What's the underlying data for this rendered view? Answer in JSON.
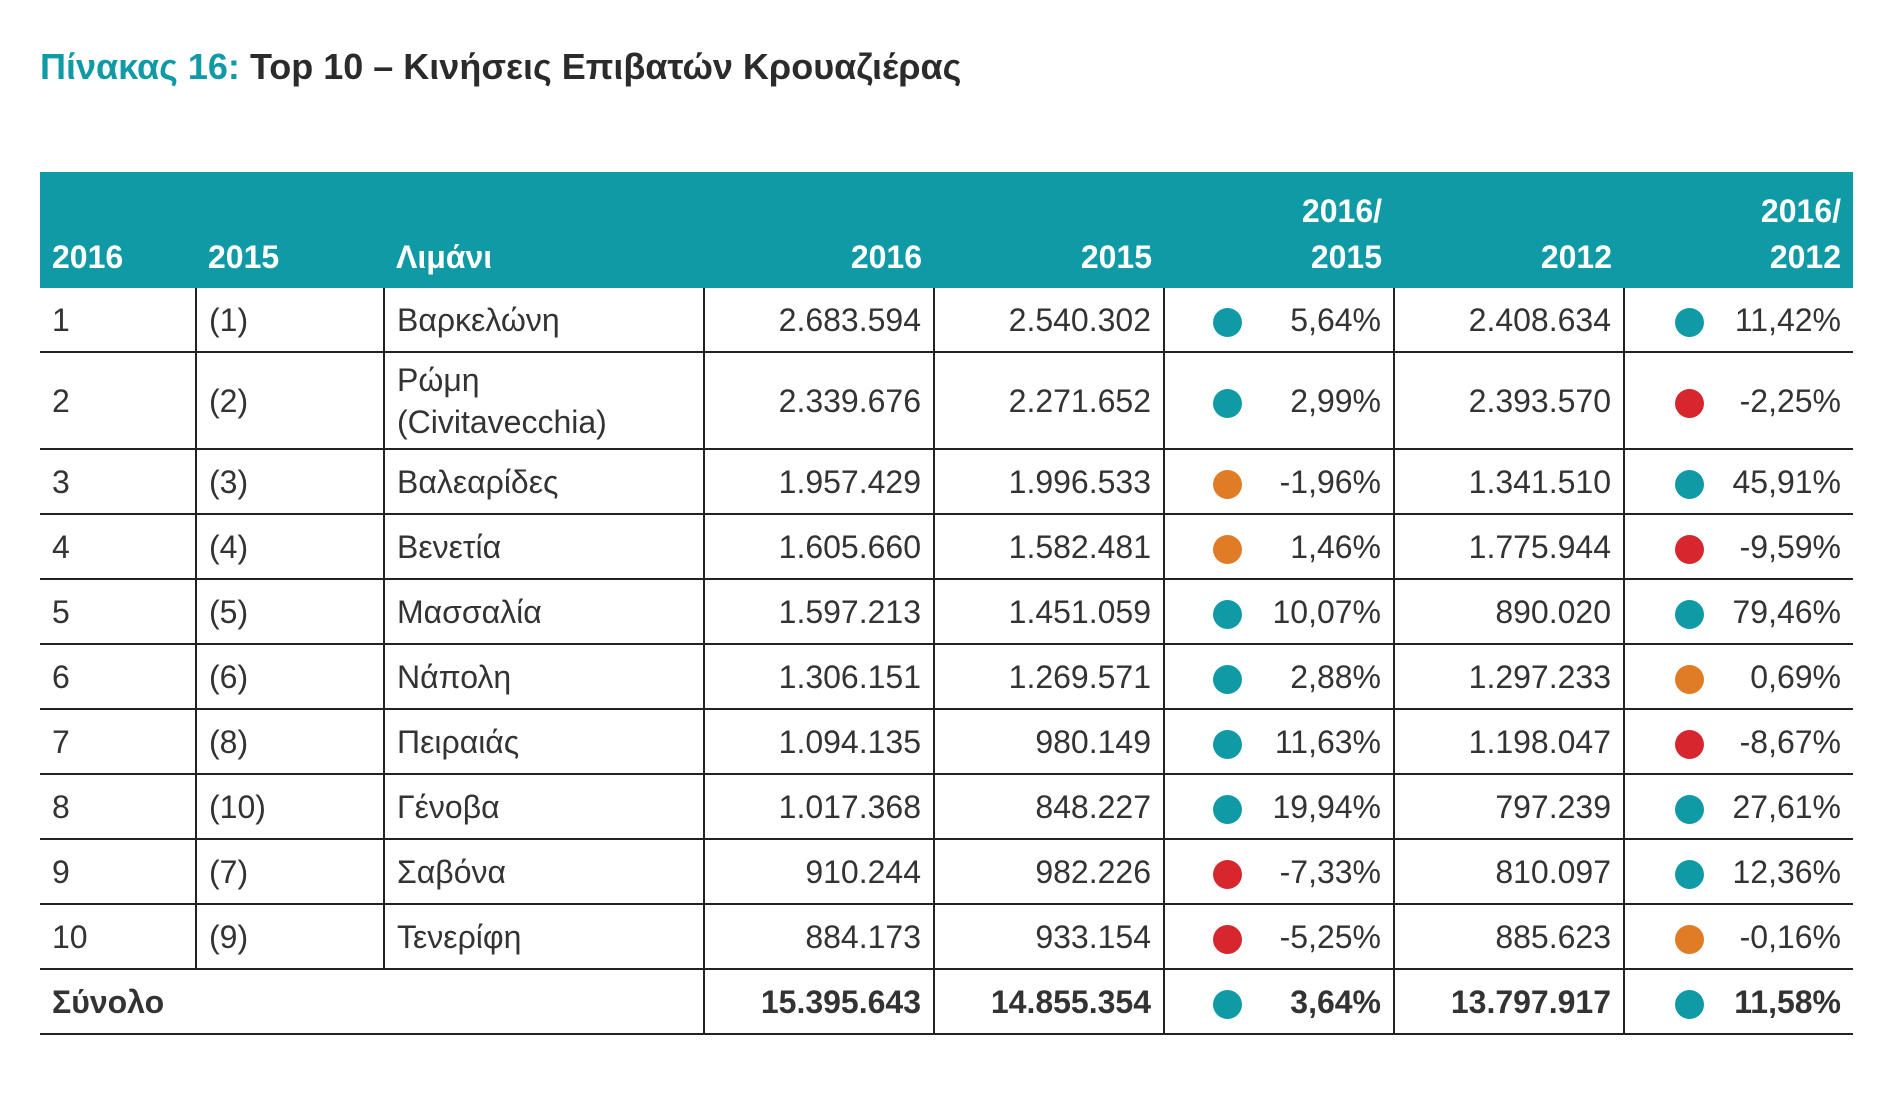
{
  "title": {
    "lead": "Πίνακας 16:",
    "rest": "Top 10 – Κινήσεις Επιβατών Κρουαζιέρας"
  },
  "colors": {
    "up": "#0f9aa6",
    "flat": "#e07b26",
    "down": "#d7262e",
    "header": "#0f9aa6"
  },
  "headers": {
    "rank2016": "2016",
    "rank2015": "2015",
    "port": "Λιμάνι",
    "v2016": "2016",
    "v2015": "2015",
    "chg16_15_l1": "2016/",
    "chg16_15_l2": "2015",
    "v2012": "2012",
    "chg16_12_l1": "2016/",
    "chg16_12_l2": "2012"
  },
  "rows": [
    {
      "rank2016": "1",
      "rank2015": "(1)",
      "port_l1": "Βαρκελώνη",
      "port_l2": "",
      "v2016": "2.683.594",
      "v2015": "2.540.302",
      "ind1": "up",
      "chg1": "5,64%",
      "v2012": "2.408.634",
      "ind2": "up",
      "chg2": "11,42%"
    },
    {
      "rank2016": "2",
      "rank2015": "(2)",
      "port_l1": "Ρώμη",
      "port_l2": "(Civitavecchia)",
      "v2016": "2.339.676",
      "v2015": "2.271.652",
      "ind1": "up",
      "chg1": "2,99%",
      "v2012": "2.393.570",
      "ind2": "down",
      "chg2": "-2,25%"
    },
    {
      "rank2016": "3",
      "rank2015": "(3)",
      "port_l1": "Βαλεαρίδες",
      "port_l2": "",
      "v2016": "1.957.429",
      "v2015": "1.996.533",
      "ind1": "flat",
      "chg1": "-1,96%",
      "v2012": "1.341.510",
      "ind2": "up",
      "chg2": "45,91%"
    },
    {
      "rank2016": "4",
      "rank2015": "(4)",
      "port_l1": "Βενετία",
      "port_l2": "",
      "v2016": "1.605.660",
      "v2015": "1.582.481",
      "ind1": "flat",
      "chg1": "1,46%",
      "v2012": "1.775.944",
      "ind2": "down",
      "chg2": "-9,59%"
    },
    {
      "rank2016": "5",
      "rank2015": "(5)",
      "port_l1": "Μασσαλία",
      "port_l2": "",
      "v2016": "1.597.213",
      "v2015": "1.451.059",
      "ind1": "up",
      "chg1": "10,07%",
      "v2012": "890.020",
      "ind2": "up",
      "chg2": "79,46%"
    },
    {
      "rank2016": "6",
      "rank2015": "(6)",
      "port_l1": "Νάπολη",
      "port_l2": "",
      "v2016": "1.306.151",
      "v2015": "1.269.571",
      "ind1": "up",
      "chg1": "2,88%",
      "v2012": "1.297.233",
      "ind2": "flat",
      "chg2": "0,69%"
    },
    {
      "rank2016": "7",
      "rank2015": "(8)",
      "port_l1": "Πειραιάς",
      "port_l2": "",
      "v2016": "1.094.135",
      "v2015": "980.149",
      "ind1": "up",
      "chg1": "11,63%",
      "v2012": "1.198.047",
      "ind2": "down",
      "chg2": "-8,67%"
    },
    {
      "rank2016": "8",
      "rank2015": "(10)",
      "port_l1": "Γένοβα",
      "port_l2": "",
      "v2016": "1.017.368",
      "v2015": "848.227",
      "ind1": "up",
      "chg1": "19,94%",
      "v2012": "797.239",
      "ind2": "up",
      "chg2": "27,61%"
    },
    {
      "rank2016": "9",
      "rank2015": "(7)",
      "port_l1": "Σαβόνα",
      "port_l2": "",
      "v2016": "910.244",
      "v2015": "982.226",
      "ind1": "down",
      "chg1": "-7,33%",
      "v2012": "810.097",
      "ind2": "up",
      "chg2": "12,36%"
    },
    {
      "rank2016": "10",
      "rank2015": "(9)",
      "port_l1": "Τενερίφη",
      "port_l2": "",
      "v2016": "884.173",
      "v2015": "933.154",
      "ind1": "down",
      "chg1": "-5,25%",
      "v2012": "885.623",
      "ind2": "flat",
      "chg2": "-0,16%"
    }
  ],
  "total": {
    "label": "Σύνολο",
    "v2016": "15.395.643",
    "v2015": "14.855.354",
    "ind1": "up",
    "chg1": "3,64%",
    "v2012": "13.797.917",
    "ind2": "up",
    "chg2": "11,58%"
  }
}
